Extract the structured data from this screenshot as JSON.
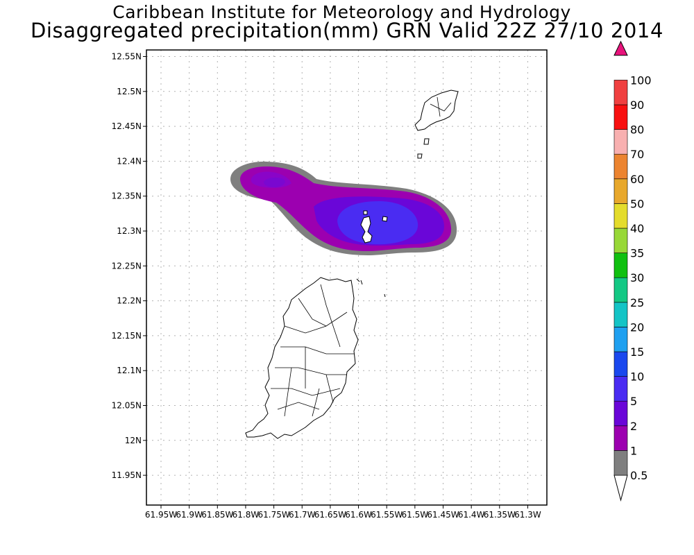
{
  "title": {
    "line1": "Caribbean Institute for Meteorology and Hydrology",
    "line2": "Disaggregated precipitation(mm) GRN Valid 22Z 27/10 2014"
  },
  "map": {
    "lat_ticks": [
      "12.55N",
      "12.5N",
      "12.45N",
      "12.4N",
      "12.35N",
      "12.3N",
      "12.25N",
      "12.2N",
      "12.15N",
      "12.1N",
      "12.05N",
      "12N",
      "11.95N"
    ],
    "lon_ticks": [
      "61.95W",
      "61.9W",
      "61.85W",
      "61.8W",
      "61.75W",
      "61.7W",
      "61.65W",
      "61.6W",
      "61.55W",
      "61.5W",
      "61.45W",
      "61.4W",
      "61.35W",
      "61.3W"
    ],
    "lat_range": [
      11.92,
      12.57
    ],
    "lon_range": [
      -61.97,
      -61.26
    ],
    "grid": true,
    "features": [
      "Grenada",
      "Carriacou",
      "Petite Martinique",
      "Grenadine cays"
    ]
  },
  "legend": {
    "unit": "mm",
    "bins": [
      {
        "label": "0.5",
        "color": "#ffffff"
      },
      {
        "label": "1",
        "color": "#7f7f7f"
      },
      {
        "label": "2",
        "color": "#9c00b0"
      },
      {
        "label": "5",
        "color": "#6a06d8"
      },
      {
        "label": "10",
        "color": "#4a2cf2"
      },
      {
        "label": "15",
        "color": "#1a48ee"
      },
      {
        "label": "20",
        "color": "#1fa0f0"
      },
      {
        "label": "25",
        "color": "#14c4c6"
      },
      {
        "label": "30",
        "color": "#14c884"
      },
      {
        "label": "35",
        "color": "#10c010"
      },
      {
        "label": "40",
        "color": "#98d838"
      },
      {
        "label": "50",
        "color": "#e4dc2c"
      },
      {
        "label": "60",
        "color": "#e8a82c"
      },
      {
        "label": "70",
        "color": "#ec8430"
      },
      {
        "label": "80",
        "color": "#f8b0b0"
      },
      {
        "label": "90",
        "color": "#f81010"
      },
      {
        "label": "100",
        "color": "#f04040"
      }
    ],
    "over_color": "#e8147c"
  }
}
